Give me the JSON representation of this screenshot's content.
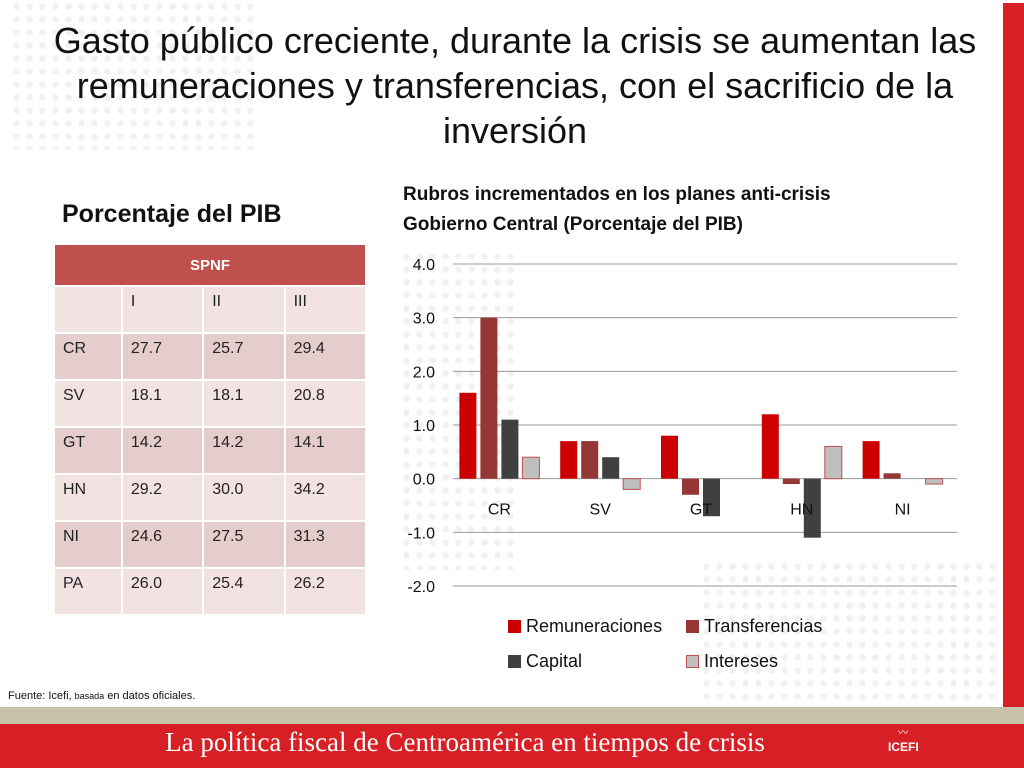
{
  "slide": {
    "title": "Gasto público creciente, durante la crisis se aumentan las remuneraciones y transferencias, con el sacrificio de la inversión",
    "left_heading": "Porcentaje del PIB",
    "source_prefix": "Fuente: Icefi, ",
    "source_small": "basada",
    "source_suffix": " en datos oficiales.",
    "footer_title": "La política fiscal de Centroamérica en tiempos de crisis",
    "footer_logo": "ICEFI",
    "colors": {
      "brand_red": "#d71f26",
      "table_header": "#c0504d",
      "band_grey": "#c8c2ad"
    }
  },
  "table": {
    "header": "SPNF",
    "columns": [
      "",
      "I",
      "II",
      "III"
    ],
    "rows": [
      [
        "CR",
        "27.7",
        "25.7",
        "29.4"
      ],
      [
        "SV",
        "18.1",
        "18.1",
        "20.8"
      ],
      [
        "GT",
        "14.2",
        "14.2",
        "14.1"
      ],
      [
        "HN",
        "29.2",
        "30.0",
        "34.2"
      ],
      [
        "NI",
        "24.6",
        "27.5",
        "31.3"
      ],
      [
        "PA",
        "26.0",
        "25.4",
        "26.2"
      ]
    ]
  },
  "chart_data": {
    "type": "bar",
    "title_line1": "Rubros incrementados en los planes anti-crisis",
    "title_line2": "Gobierno Central (Porcentaje del PIB)",
    "categories": [
      "CR",
      "SV",
      "GT",
      "HN",
      "NI"
    ],
    "series": [
      {
        "name": "Remuneraciones",
        "color": "#cc0000",
        "values": [
          1.6,
          0.7,
          0.8,
          1.2,
          0.7
        ]
      },
      {
        "name": "Transferencias",
        "color": "#953735",
        "values": [
          3.0,
          0.7,
          -0.3,
          -0.1,
          0.1
        ]
      },
      {
        "name": "Capital",
        "color": "#404040",
        "values": [
          1.1,
          0.4,
          -0.7,
          -1.1,
          0.0
        ]
      },
      {
        "name": "Intereses",
        "color": "#bfbfbf",
        "values": [
          0.4,
          -0.2,
          0.0,
          0.6,
          -0.1
        ]
      }
    ],
    "yticks": [
      "4.0",
      "3.0",
      "2.0",
      "1.0",
      "0.0",
      "-1.0",
      "-2.0"
    ],
    "ylim": [
      -2.0,
      4.0
    ],
    "xlabel": "",
    "ylabel": "",
    "grid": true,
    "legend": "bottom"
  }
}
